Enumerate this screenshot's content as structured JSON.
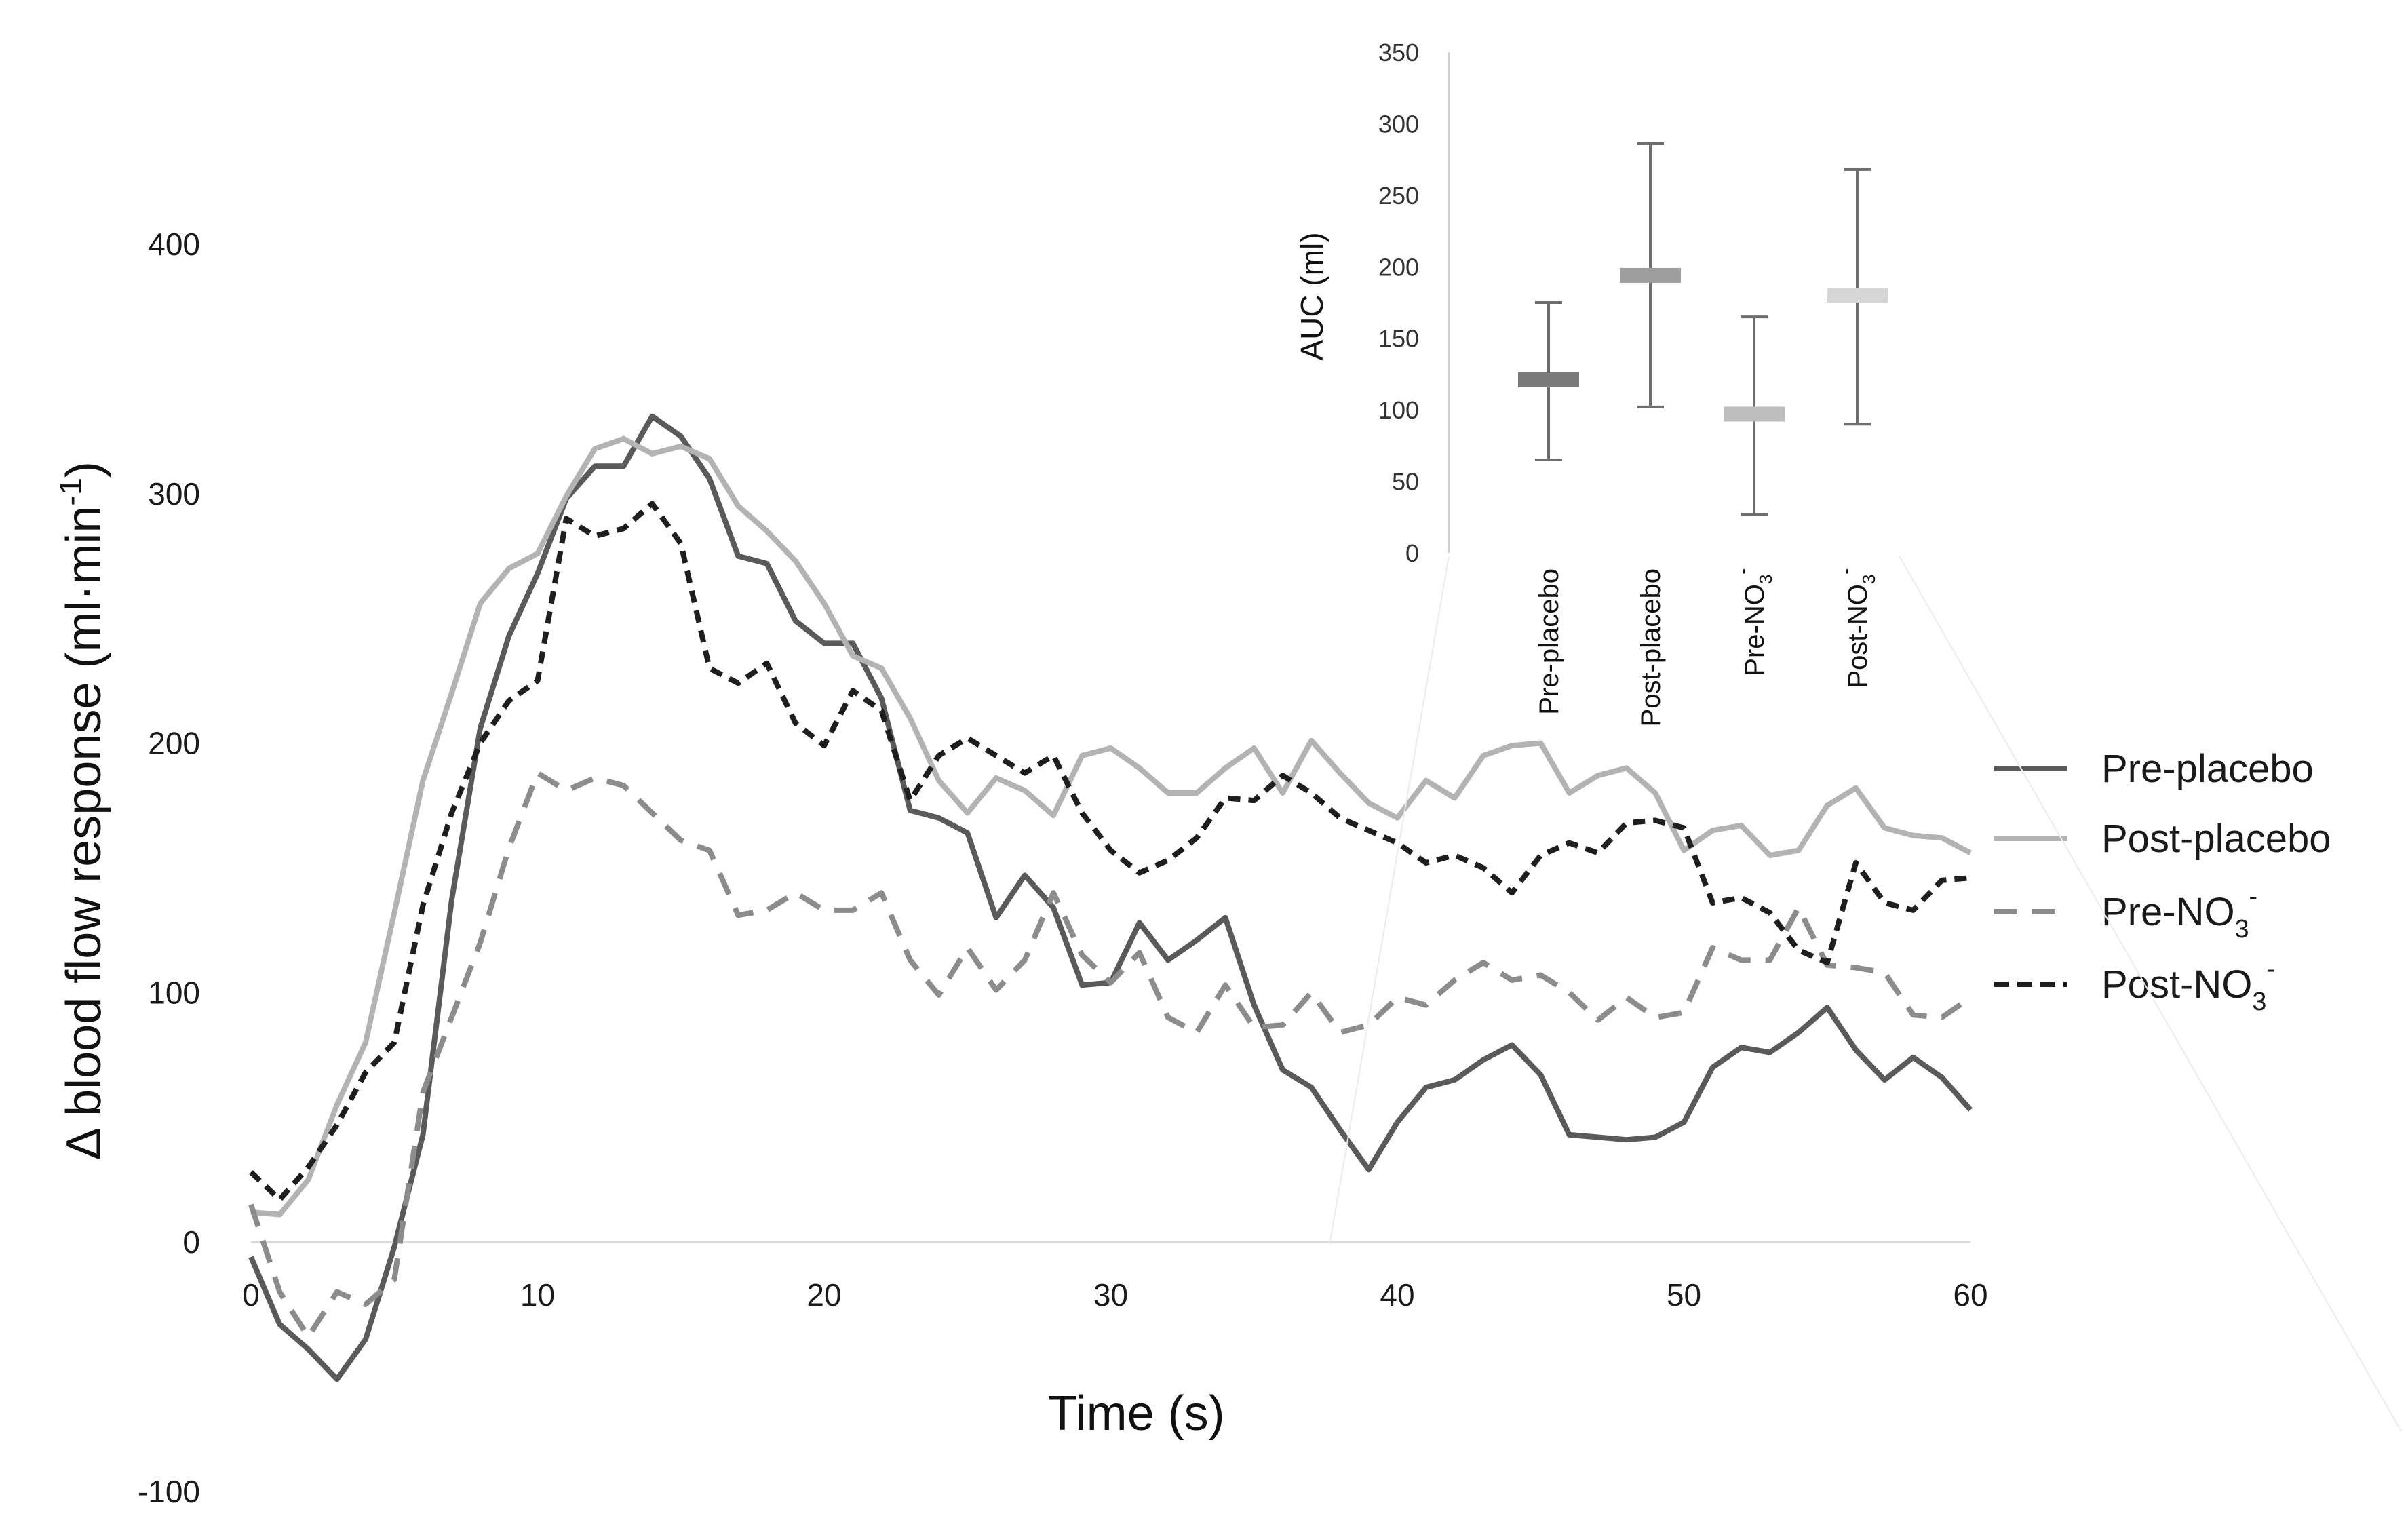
{
  "chart_data": [
    {
      "type": "line",
      "title": "",
      "xlabel": "Time (s)",
      "ylabel": "Δ blood flow response (ml·min⁻¹)",
      "xlim": [
        0,
        60
      ],
      "ylim": [
        -100,
        400
      ],
      "xticks": [
        "0",
        "10",
        "20",
        "30",
        "40",
        "50",
        "60"
      ],
      "yticks": [
        "-100",
        "0",
        "100",
        "200",
        "300",
        "400"
      ],
      "grid": false,
      "legend_position": "right",
      "x": [
        0,
        1,
        2,
        3,
        4,
        5,
        6,
        7,
        8,
        9,
        10,
        11,
        12,
        13,
        14,
        15,
        16,
        17,
        18,
        19,
        20,
        21,
        22,
        23,
        24,
        25,
        26,
        27,
        28,
        29,
        30,
        31,
        32,
        33,
        34,
        35,
        36,
        37,
        38,
        39,
        40,
        41,
        42,
        43,
        44,
        45,
        46,
        47,
        48,
        49,
        50,
        51,
        52,
        53,
        54,
        55,
        56,
        57,
        58,
        59,
        60
      ],
      "series": [
        {
          "name": "Pre-placebo",
          "label_main": "Pre-placebo",
          "color": "#5a5a5a",
          "dash": "solid",
          "values": [
            -6,
            -33,
            -43,
            -55,
            -39,
            -2,
            43,
            137,
            206,
            243,
            268,
            298,
            311,
            311,
            331,
            323,
            306,
            275,
            272,
            249,
            240,
            240,
            218,
            173,
            170,
            164,
            130,
            147,
            134,
            103,
            104,
            128,
            113,
            121,
            130,
            95,
            69,
            62,
            45,
            29,
            48,
            62,
            65,
            73,
            79,
            67,
            43,
            42,
            41,
            42,
            48,
            70,
            78,
            76,
            84,
            94,
            77,
            65,
            74,
            66,
            53
          ]
        },
        {
          "name": "Post-placebo",
          "label_main": "Post-placebo",
          "color": "#b3b3b3",
          "dash": "solid",
          "values": [
            12,
            11,
            25,
            55,
            80,
            132,
            185,
            220,
            256,
            270,
            276,
            299,
            318,
            322,
            316,
            319,
            314,
            295,
            285,
            273,
            256,
            235,
            230,
            210,
            185,
            172,
            186,
            181,
            171,
            195,
            198,
            190,
            180,
            180,
            190,
            198,
            180,
            201,
            188,
            176,
            170,
            185,
            178,
            195,
            199,
            200,
            180,
            187,
            190,
            180,
            157,
            165,
            167,
            155,
            157,
            175,
            182,
            166,
            163,
            162,
            156
          ]
        },
        {
          "name": "Pre-NO3-",
          "label_main": "Pre-NO",
          "label_sub": "3",
          "label_sup": "-",
          "color": "#8c8c8c",
          "dash": "dash",
          "values": [
            15,
            -20,
            -38,
            -20,
            -25,
            -15,
            60,
            90,
            120,
            158,
            188,
            181,
            186,
            183,
            172,
            161,
            157,
            131,
            133,
            140,
            133,
            133,
            140,
            113,
            99,
            118,
            101,
            113,
            140,
            115,
            104,
            116,
            90,
            84,
            103,
            86,
            87,
            100,
            84,
            87,
            98,
            95,
            105,
            112,
            105,
            107,
            100,
            89,
            98,
            90,
            92,
            118,
            113,
            113,
            134,
            111,
            110,
            108,
            91,
            90,
            98
          ]
        },
        {
          "name": "Post-NO3-",
          "label_main": "Post-NO",
          "label_sub": "3",
          "label_sup": "-",
          "color": "#1e1e1e",
          "dash": "dot",
          "values": [
            28,
            17,
            30,
            47,
            68,
            80,
            135,
            172,
            200,
            217,
            225,
            290,
            283,
            286,
            296,
            280,
            230,
            224,
            232,
            208,
            199,
            221,
            213,
            177,
            195,
            202,
            195,
            188,
            195,
            172,
            157,
            148,
            153,
            162,
            178,
            177,
            187,
            180,
            170,
            165,
            160,
            152,
            155,
            150,
            140,
            155,
            160,
            156,
            168,
            169,
            166,
            136,
            138,
            132,
            117,
            112,
            152,
            136,
            133,
            145,
            146
          ]
        }
      ]
    },
    {
      "type": "bar",
      "subtype": "mean-with-error-bars",
      "title": "",
      "xlabel": "",
      "ylabel": "AUC (ml)",
      "ylim": [
        0,
        350
      ],
      "yticks": [
        "0",
        "50",
        "100",
        "150",
        "200",
        "250",
        "300",
        "350"
      ],
      "categories": [
        "Pre-placebo",
        "Post-placebo",
        "Pre-NO3-",
        "Post-NO3-"
      ],
      "category_labels": [
        {
          "main": "Pre-placebo",
          "sub": "",
          "sup": ""
        },
        {
          "main": "Post-placebo",
          "sub": "",
          "sup": ""
        },
        {
          "main": "Pre-NO",
          "sub": "3",
          "sup": "-"
        },
        {
          "main": "Post-NO",
          "sub": "3",
          "sup": "-"
        }
      ],
      "values": [
        121,
        194,
        97,
        180
      ],
      "error_low": [
        65,
        102,
        27,
        90
      ],
      "error_high": [
        175,
        286,
        165,
        268
      ],
      "colors": [
        "#7a7a7a",
        "#9e9e9e",
        "#bdbdbd",
        "#d6d6d6"
      ]
    }
  ]
}
